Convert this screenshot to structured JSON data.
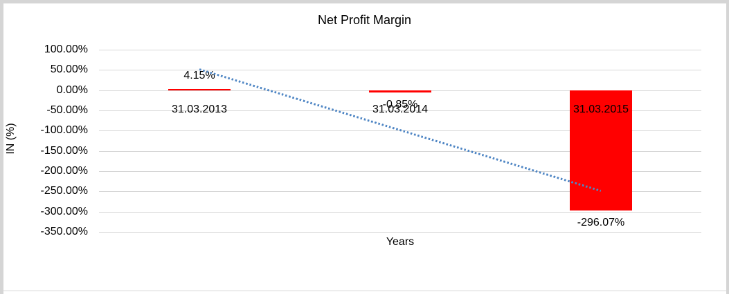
{
  "chart_data": {
    "type": "bar",
    "title": "Net Profit Margin",
    "xlabel": "Years",
    "ylabel": "IN (%)",
    "categories": [
      "31.03.2013",
      "31.03.2014",
      "31.03.2015"
    ],
    "values": [
      4.15,
      -0.85,
      -296.07
    ],
    "data_labels": [
      "4.15%",
      "-0.85%",
      "-296.07%"
    ],
    "y_tick_labels": [
      "100.00%",
      "50.00%",
      "0.00%",
      "-50.00%",
      "-100.00%",
      "-150.00%",
      "-200.00%",
      "-250.00%",
      "-300.00%",
      "-350.00%"
    ],
    "y_tick_values": [
      100,
      50,
      0,
      -50,
      -100,
      -150,
      -200,
      -250,
      -300,
      -350
    ],
    "ylim": [
      -350,
      100
    ],
    "grid": "horizontal",
    "legend": "none",
    "bar_color": "#ff0000",
    "trendline": {
      "type": "linear",
      "style": "dotted",
      "color": "#4f86c4",
      "start_value": 52.5,
      "end_value": -247.7
    }
  }
}
